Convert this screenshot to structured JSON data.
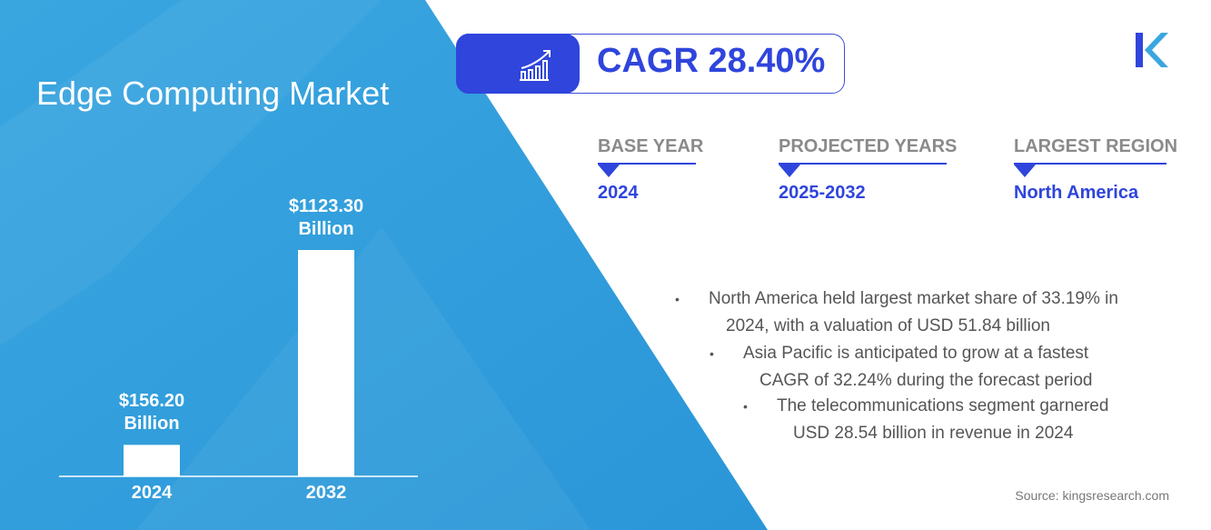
{
  "title": "Edge Computing Market",
  "cagr": {
    "label": "CAGR 28.40%",
    "icon": "growth-chart-icon"
  },
  "stats": [
    {
      "label": "BASE YEAR",
      "value": "2024"
    },
    {
      "label": "PROJECTED YEARS",
      "value": "2025-2032"
    },
    {
      "label": "LARGEST REGION",
      "value": "North America"
    }
  ],
  "bullets": [
    {
      "line1": "North America held largest market share of 33.19% in",
      "line2": "2024, with a valuation of USD 51.84 billion"
    },
    {
      "line1": "Asia Pacific is anticipated to grow at a fastest",
      "line2": "CAGR of 32.24% during the forecast period"
    },
    {
      "line1": "The telecommunications segment garnered",
      "line2": "USD 28.54 billion in revenue in 2024"
    }
  ],
  "bullet_char": "•",
  "source": "Source: kingsresearch.com",
  "colors": {
    "accent": "#2f45dc",
    "panel": "#2f9fdc"
  },
  "chart_data": {
    "type": "bar",
    "categories": [
      "2024",
      "2032"
    ],
    "values": [
      156.2,
      1123.3
    ],
    "unit": "USD Billion",
    "labels": [
      {
        "l1": "$156.20",
        "l2": "Billion"
      },
      {
        "l1": "$1123.30",
        "l2": "Billion"
      }
    ]
  }
}
